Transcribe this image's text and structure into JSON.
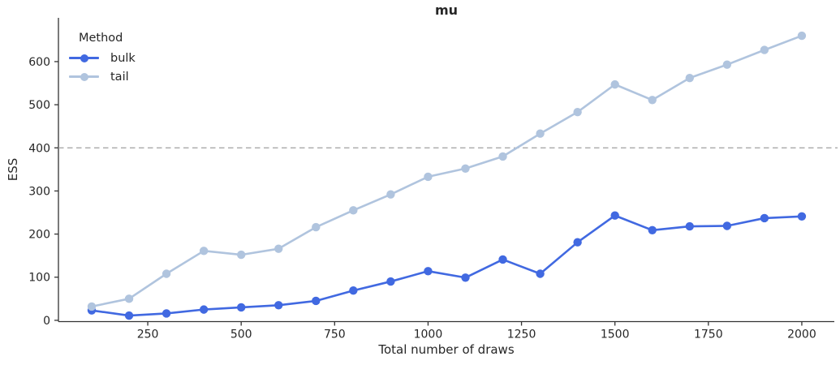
{
  "figure": {
    "title": "mu"
  },
  "chart_data": {
    "type": "line",
    "title": "mu",
    "xlabel": "Total number of draws",
    "ylabel": "ESS",
    "legend_title": "Method",
    "legend_position": "upper left",
    "grid": false,
    "x": [
      100,
      200,
      300,
      400,
      500,
      600,
      700,
      800,
      900,
      1000,
      1100,
      1200,
      1300,
      1400,
      1500,
      1600,
      1700,
      1800,
      1900,
      2000
    ],
    "series": [
      {
        "name": "bulk",
        "color": "#4169e1",
        "values": [
          23,
          11,
          16,
          25,
          30,
          35,
          45,
          69,
          90,
          114,
          99,
          141,
          108,
          181,
          243,
          209,
          218,
          219,
          237,
          241
        ]
      },
      {
        "name": "tail",
        "color": "#b0c4de",
        "values": [
          32,
          50,
          108,
          161,
          152,
          166,
          216,
          255,
          292,
          333,
          352,
          380,
          433,
          483,
          547,
          511,
          562,
          593,
          627,
          660
        ]
      }
    ],
    "reference_line": {
      "y": 400,
      "style": "dashed",
      "color": "#a8a8a8"
    },
    "x_ticks": [
      250,
      500,
      750,
      1000,
      1250,
      1500,
      1750,
      2000
    ],
    "y_ticks": [
      0,
      100,
      200,
      300,
      400,
      500,
      600
    ],
    "xlim": [
      11,
      2087
    ],
    "ylim": [
      -3,
      701.5
    ],
    "axis_color": "#333333",
    "text_color": "#262626"
  }
}
